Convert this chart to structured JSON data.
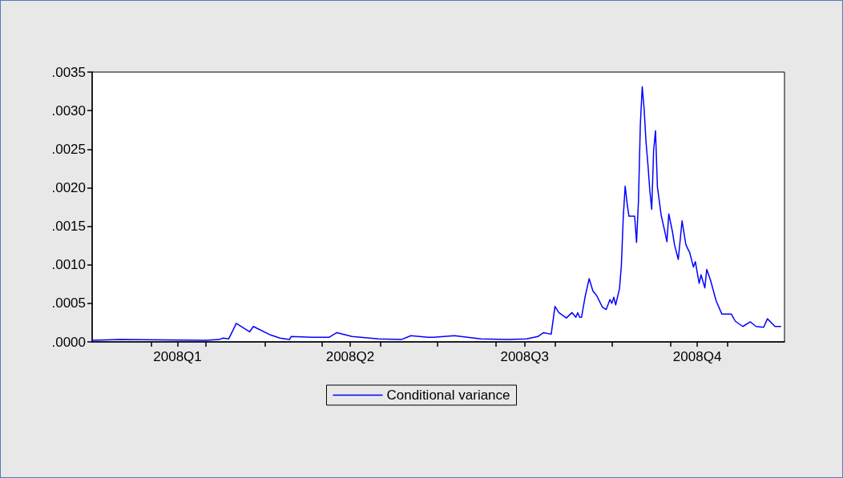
{
  "chart_data": {
    "type": "line",
    "xlim": [
      "2008-01-01",
      "2008-12-31"
    ],
    "xticks": [
      {
        "value": "2008-02-01",
        "label": null
      },
      {
        "value": "2008-02-15",
        "label": "2008Q1"
      },
      {
        "value": "2008-03-01",
        "label": null
      },
      {
        "value": "2008-04-01",
        "label": null
      },
      {
        "value": "2008-05-01",
        "label": null
      },
      {
        "value": "2008-05-16",
        "label": "2008Q2"
      },
      {
        "value": "2008-06-01",
        "label": null
      },
      {
        "value": "2008-07-01",
        "label": null
      },
      {
        "value": "2008-08-01",
        "label": null
      },
      {
        "value": "2008-08-16",
        "label": "2008Q3"
      },
      {
        "value": "2008-09-01",
        "label": null
      },
      {
        "value": "2008-10-01",
        "label": null
      },
      {
        "value": "2008-11-01",
        "label": null
      },
      {
        "value": "2008-11-15",
        "label": "2008Q4"
      },
      {
        "value": "2008-12-01",
        "label": null
      }
    ],
    "ylim": [
      0,
      0.0035
    ],
    "yticks": [
      {
        "value": 0,
        "label": ".0000"
      },
      {
        "value": 0.0005,
        "label": ".0005"
      },
      {
        "value": 0.001,
        "label": ".0010"
      },
      {
        "value": 0.0015,
        "label": ".0015"
      },
      {
        "value": 0.002,
        "label": ".0020"
      },
      {
        "value": 0.0025,
        "label": ".0025"
      },
      {
        "value": 0.003,
        "label": ".0030"
      },
      {
        "value": 0.0035,
        "label": ".0035"
      }
    ],
    "grid": false,
    "legend": "bottom",
    "marker": "none",
    "line_style": "solid",
    "series": [
      {
        "name": "Conditional variance",
        "color": "#0000ff",
        "x": [
          "2008-01-01",
          "2008-01-16",
          "2008-03-01",
          "2008-03-08",
          "2008-03-10",
          "2008-03-13",
          "2008-03-17",
          "2008-03-24",
          "2008-03-26",
          "2008-04-04",
          "2008-04-09",
          "2008-04-14",
          "2008-04-15",
          "2008-04-26",
          "2008-05-05",
          "2008-05-09",
          "2008-05-17",
          "2008-05-31",
          "2008-06-12",
          "2008-06-17",
          "2008-06-26",
          "2008-06-29",
          "2008-07-10",
          "2008-07-24",
          "2008-08-07",
          "2008-08-17",
          "2008-08-23",
          "2008-08-26",
          "2008-08-30",
          "2008-08-31",
          "2008-09-01",
          "2008-09-03",
          "2008-09-07",
          "2008-09-10",
          "2008-09-12",
          "2008-09-13",
          "2008-09-14",
          "2008-09-15",
          "2008-09-17",
          "2008-09-19",
          "2008-09-21",
          "2008-09-23",
          "2008-09-26",
          "2008-09-28",
          "2008-09-30",
          "2008-10-01",
          "2008-10-02",
          "2008-10-03",
          "2008-10-05",
          "2008-10-06",
          "2008-10-07",
          "2008-10-08",
          "2008-10-09",
          "2008-10-10",
          "2008-10-13",
          "2008-10-14",
          "2008-10-15",
          "2008-10-16",
          "2008-10-17",
          "2008-10-18",
          "2008-10-19",
          "2008-10-20",
          "2008-10-21",
          "2008-10-22",
          "2008-10-23",
          "2008-10-24",
          "2008-10-25",
          "2008-10-27",
          "2008-10-29",
          "2008-10-30",
          "2008-10-31",
          "2008-11-02",
          "2008-11-03",
          "2008-11-05",
          "2008-11-07",
          "2008-11-09",
          "2008-11-11",
          "2008-11-13",
          "2008-11-14",
          "2008-11-16",
          "2008-11-17",
          "2008-11-19",
          "2008-11-20",
          "2008-11-22",
          "2008-11-25",
          "2008-11-28",
          "2008-12-03",
          "2008-12-05",
          "2008-12-09",
          "2008-12-13",
          "2008-12-16",
          "2008-12-20",
          "2008-12-22",
          "2008-12-26",
          "2008-12-29"
        ],
        "values": [
          2e-05,
          3e-05,
          2e-05,
          3e-05,
          5e-05,
          4e-05,
          0.00024,
          0.00013,
          0.0002,
          9e-05,
          5e-05,
          3e-05,
          7e-05,
          6e-05,
          6e-05,
          0.00012,
          7e-05,
          4e-05,
          3e-05,
          8e-05,
          6e-05,
          6e-05,
          8e-05,
          4e-05,
          3e-05,
          4e-05,
          7e-05,
          0.00012,
          0.0001,
          0.00028,
          0.00046,
          0.00038,
          0.00031,
          0.00038,
          0.00032,
          0.00038,
          0.00032,
          0.00032,
          0.0006,
          0.00082,
          0.00066,
          0.0006,
          0.00045,
          0.00042,
          0.00055,
          0.0005,
          0.00058,
          0.00048,
          0.00069,
          0.00099,
          0.00162,
          0.00202,
          0.0018,
          0.00163,
          0.00163,
          0.00129,
          0.00182,
          0.00282,
          0.00331,
          0.00302,
          0.00259,
          0.0023,
          0.00196,
          0.00172,
          0.00248,
          0.00274,
          0.00201,
          0.00164,
          0.00142,
          0.0013,
          0.00166,
          0.00142,
          0.00126,
          0.00107,
          0.00157,
          0.00126,
          0.00116,
          0.00097,
          0.00104,
          0.00076,
          0.00087,
          0.0007,
          0.00094,
          0.0008,
          0.00053,
          0.00036,
          0.00036,
          0.00027,
          0.0002,
          0.00026,
          0.0002,
          0.00019,
          0.0003,
          0.0002,
          0.0002
        ]
      }
    ]
  }
}
